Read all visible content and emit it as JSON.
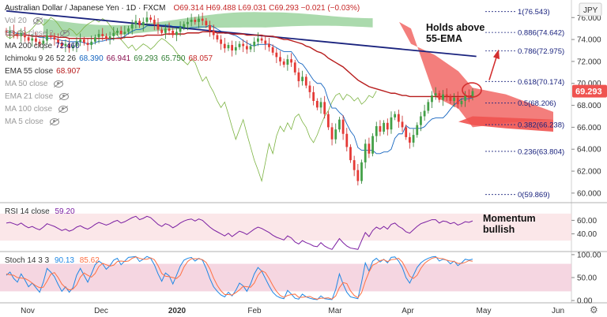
{
  "header": {
    "symbol_title": "Australian Dollar / Japanese Yen · 1D · FXCM",
    "ohlc": "O69.314  H69.488  L69.031  C69.293  −0.021 (−0.03%)",
    "currency": "JPY"
  },
  "legend": {
    "vol": "Vol 20",
    "bb": "BB 20 close 2",
    "ma200": {
      "label": "MA 200 close",
      "value": "72.460"
    },
    "ichimoku": {
      "label": "Ichimoku 9 26 52 26",
      "v1": "68.390",
      "v2": "66.941",
      "v3": "69.293",
      "v4": "65.750",
      "v5": "68.057"
    },
    "ema55": {
      "label": "EMA 55 close",
      "value": "68.907"
    },
    "ma50": "MA 50 close",
    "ema21": "EMA 21 close",
    "ma100": "MA 100 close",
    "ma5": "MA 5 close"
  },
  "annotations": {
    "holds_line1": "Holds above",
    "holds_line2": "55-EMA",
    "momentum_line1": "Momentum",
    "momentum_line2": "bullish"
  },
  "rsi_pane": {
    "label": "RSI 14 close",
    "value": "59.20"
  },
  "stoch_pane": {
    "label": "Stoch 14 3 3",
    "k": "90.13",
    "d": "85.62"
  },
  "colors": {
    "bull": "#26a69a",
    "bear": "#ef5350",
    "cloud_green": "#66bb6a",
    "cloud_red": "#ef5350",
    "ema55": "#b71c1c",
    "ma200": "#1a237e",
    "rsi": "#7b1fa2",
    "stoch_k": "#1e88e5",
    "stoch_d": "#ff7043",
    "price_badge": "#ef5350"
  },
  "chart_data": {
    "type": "candlestick",
    "title": "Australian Dollar / Japanese Yen · 1D · FXCM",
    "ylim": [
      59.2,
      77.6
    ],
    "y_ticks": [
      60.0,
      62.0,
      64.0,
      66.0,
      68.0,
      70.0,
      72.0,
      74.0,
      76.0
    ],
    "x_ticks": [
      "Nov",
      "Dec",
      "2020",
      "Feb",
      "Mar",
      "Apr",
      "May",
      "Jun"
    ],
    "last_price": "69.293",
    "fib_levels": [
      {
        "label": "1(76.543)",
        "value": 76.543
      },
      {
        "label": "0.886(74.642)",
        "value": 74.642
      },
      {
        "label": "0.786(72.975)",
        "value": 72.975
      },
      {
        "label": "0.618(70.174)",
        "value": 70.174
      },
      {
        "label": "0.5(68.206)",
        "value": 68.206
      },
      {
        "label": "0.382(66.238)",
        "value": 66.238
      },
      {
        "label": "0.236(63.804)",
        "value": 63.804
      },
      {
        "label": "0(59.869)",
        "value": 59.869
      }
    ],
    "price": [
      74.6,
      74.8,
      74.5,
      74.3,
      74.6,
      74.2,
      73.9,
      74.1,
      73.8,
      73.6,
      73.9,
      74.4,
      74.2,
      74.0,
      73.7,
      73.4,
      73.6,
      73.2,
      73.4,
      73.8,
      74.0,
      73.7,
      73.5,
      73.8,
      74.2,
      74.5,
      74.3,
      74.1,
      74.3,
      74.6,
      74.8,
      74.5,
      74.7,
      75.0,
      75.4,
      75.7,
      75.3,
      75.6,
      76.0,
      75.8,
      75.4,
      74.9,
      74.6,
      75.0,
      74.8,
      74.4,
      74.7,
      75.1,
      75.4,
      75.6,
      75.8,
      75.6,
      75.9,
      75.7,
      75.3,
      74.8,
      74.4,
      74.0,
      73.6,
      73.2,
      73.5,
      73.0,
      73.3,
      73.6,
      73.4,
      73.1,
      73.4,
      73.8,
      74.1,
      73.9,
      73.6,
      73.3,
      72.8,
      72.4,
      72.0,
      71.7,
      72.2,
      71.9,
      71.0,
      70.2,
      70.6,
      69.8,
      69.2,
      68.4,
      67.8,
      68.3,
      67.2,
      66.0,
      64.9,
      65.8,
      66.7,
      65.4,
      64.2,
      63.0,
      62.1,
      61.1,
      62.8,
      64.5,
      63.6,
      65.2,
      66.1,
      65.6,
      66.4,
      65.8,
      66.9,
      67.2,
      66.5,
      66.0,
      65.1,
      64.6,
      65.3,
      66.2,
      67.0,
      67.5,
      68.3,
      68.9,
      69.1,
      68.5,
      69.0,
      68.8,
      68.4,
      68.7,
      68.1,
      68.4,
      68.9,
      68.7,
      69.3
    ],
    "ema55": [
      74.4,
      74.4,
      74.4,
      74.4,
      74.4,
      74.4,
      74.4,
      74.3,
      74.3,
      74.3,
      74.3,
      74.3,
      74.3,
      74.3,
      74.2,
      74.2,
      74.2,
      74.1,
      74.1,
      74.1,
      74.1,
      74.1,
      74.1,
      74.1,
      74.1,
      74.1,
      74.1,
      74.1,
      74.1,
      74.1,
      74.1,
      74.1,
      74.2,
      74.2,
      74.2,
      74.3,
      74.3,
      74.3,
      74.4,
      74.4,
      74.4,
      74.4,
      74.4,
      74.5,
      74.5,
      74.5,
      74.5,
      74.5,
      74.5,
      74.6,
      74.6,
      74.6,
      74.6,
      74.7,
      74.7,
      74.7,
      74.7,
      74.6,
      74.6,
      74.6,
      74.6,
      74.5,
      74.5,
      74.5,
      74.5,
      74.4,
      74.4,
      74.4,
      74.4,
      74.4,
      74.3,
      74.3,
      74.3,
      74.2,
      74.1,
      74.0,
      74.0,
      73.9,
      73.8,
      73.7,
      73.6,
      73.4,
      73.3,
      73.1,
      72.9,
      72.8,
      72.6,
      72.3,
      72.1,
      71.9,
      71.7,
      71.5,
      71.2,
      70.9,
      70.6,
      70.3,
      70.1,
      69.9,
      69.7,
      69.6,
      69.5,
      69.4,
      69.3,
      69.2,
      69.1,
      69.1,
      69.0,
      68.9,
      68.9,
      68.8,
      68.8,
      68.8,
      68.8,
      68.8,
      68.8,
      68.8,
      68.8,
      68.8,
      68.8,
      68.8,
      68.8,
      68.8,
      68.8,
      68.8,
      68.8,
      68.8,
      68.9
    ],
    "ma200_line": {
      "start": [
        0,
        76.6
      ],
      "end": [
        127,
        72.46
      ]
    },
    "rsi": [
      56,
      57,
      55,
      53,
      56,
      52,
      49,
      51,
      48,
      46,
      50,
      55,
      53,
      51,
      48,
      45,
      47,
      44,
      46,
      50,
      52,
      49,
      47,
      50,
      54,
      57,
      55,
      53,
      55,
      58,
      60,
      56,
      58,
      61,
      64,
      66,
      61,
      63,
      66,
      64,
      59,
      54,
      51,
      55,
      53,
      49,
      52,
      56,
      59,
      61,
      62,
      59,
      62,
      60,
      55,
      50,
      46,
      43,
      40,
      37,
      41,
      36,
      40,
      44,
      42,
      39,
      43,
      47,
      50,
      48,
      45,
      42,
      38,
      35,
      33,
      31,
      37,
      34,
      28,
      25,
      30,
      27,
      25,
      22,
      21,
      27,
      22,
      19,
      17,
      25,
      33,
      27,
      22,
      19,
      18,
      17,
      30,
      42,
      36,
      45,
      50,
      47,
      51,
      47,
      54,
      56,
      51,
      48,
      43,
      41,
      46,
      51,
      55,
      57,
      59,
      61,
      61,
      56,
      59,
      58,
      55,
      57,
      53,
      55,
      58,
      57,
      59.2
    ],
    "stoch_k": [
      55,
      62,
      48,
      40,
      58,
      45,
      30,
      38,
      28,
      18,
      40,
      70,
      62,
      52,
      35,
      20,
      30,
      18,
      28,
      55,
      70,
      55,
      40,
      58,
      78,
      86,
      80,
      68,
      76,
      88,
      92,
      78,
      86,
      94,
      95,
      96,
      85,
      90,
      96,
      92,
      78,
      58,
      42,
      60,
      54,
      36,
      55,
      75,
      88,
      92,
      94,
      86,
      92,
      88,
      70,
      48,
      30,
      20,
      12,
      8,
      18,
      10,
      22,
      38,
      32,
      20,
      36,
      58,
      72,
      64,
      48,
      32,
      18,
      10,
      6,
      4,
      22,
      14,
      5,
      3,
      14,
      8,
      5,
      3,
      2,
      10,
      4,
      3,
      2,
      24,
      58,
      36,
      18,
      8,
      6,
      4,
      40,
      82,
      64,
      86,
      92,
      84,
      90,
      82,
      94,
      95,
      86,
      72,
      50,
      38,
      55,
      72,
      82,
      88,
      92,
      95,
      96,
      86,
      90,
      88,
      80,
      86,
      76,
      82,
      90,
      88,
      90.13
    ],
    "stoch_d": [
      58,
      56,
      55,
      50,
      49,
      48,
      44,
      38,
      32,
      28,
      29,
      42,
      57,
      61,
      50,
      36,
      28,
      23,
      25,
      34,
      51,
      60,
      55,
      51,
      59,
      74,
      81,
      78,
      75,
      77,
      85,
      86,
      85,
      86,
      92,
      95,
      92,
      90,
      90,
      93,
      89,
      76,
      59,
      53,
      52,
      50,
      48,
      55,
      73,
      85,
      91,
      91,
      91,
      89,
      83,
      69,
      49,
      33,
      21,
      13,
      13,
      12,
      17,
      23,
      31,
      30,
      29,
      38,
      55,
      65,
      61,
      48,
      33,
      20,
      11,
      7,
      11,
      13,
      14,
      7,
      7,
      8,
      9,
      5,
      3,
      5,
      5,
      6,
      3,
      10,
      28,
      39,
      37,
      21,
      11,
      6,
      17,
      42,
      62,
      77,
      81,
      87,
      89,
      85,
      89,
      90,
      92,
      84,
      69,
      53,
      48,
      55,
      70,
      81,
      87,
      92,
      94,
      92,
      91,
      88,
      86,
      85,
      81,
      81,
      83,
      87,
      85.62
    ]
  }
}
